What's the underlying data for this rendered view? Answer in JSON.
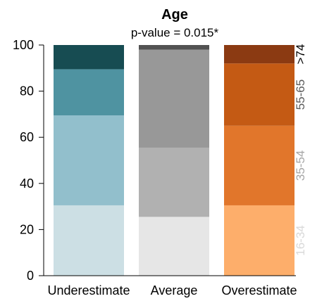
{
  "chart_data": {
    "type": "bar",
    "stacked": true,
    "title": "Age",
    "subtitle": "p-value =  0.015*",
    "ylim": [
      0,
      100
    ],
    "yticks": [
      0,
      20,
      40,
      60,
      80,
      100
    ],
    "categories": [
      "Underestimate",
      "Average",
      "Overestimate"
    ],
    "age_groups": [
      "16-34",
      "35-54",
      "55-65",
      ">74"
    ],
    "age_group_label_colors": [
      "#d9d9d9",
      "#a6a6a6",
      "#5a5a5a",
      "#000000"
    ],
    "stacks": [
      {
        "category": "Underestimate",
        "segments": [
          {
            "value": 30.5,
            "color": "#ccdfe4"
          },
          {
            "value": 39.0,
            "color": "#92bfcc"
          },
          {
            "value": 20.0,
            "color": "#4f93a1"
          },
          {
            "value": 10.5,
            "color": "#174c52"
          }
        ]
      },
      {
        "category": "Average",
        "segments": [
          {
            "value": 25.5,
            "color": "#e6e6e6"
          },
          {
            "value": 30.0,
            "color": "#b1b1b1"
          },
          {
            "value": 42.5,
            "color": "#989898"
          },
          {
            "value": 2.0,
            "color": "#525252"
          }
        ]
      },
      {
        "category": "Overestimate",
        "segments": [
          {
            "value": 30.5,
            "color": "#fdae6b"
          },
          {
            "value": 34.5,
            "color": "#e1762b"
          },
          {
            "value": 27.0,
            "color": "#c45a14"
          },
          {
            "value": 8.0,
            "color": "#8b3a12"
          }
        ]
      }
    ]
  }
}
